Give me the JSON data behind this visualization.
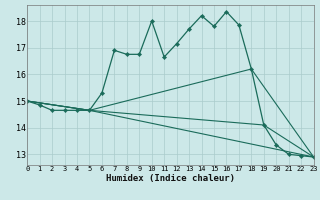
{
  "xlabel": "Humidex (Indice chaleur)",
  "xlim": [
    0,
    23
  ],
  "ylim": [
    12.6,
    18.6
  ],
  "yticks": [
    13,
    14,
    15,
    16,
    17,
    18
  ],
  "xticks": [
    0,
    1,
    2,
    3,
    4,
    5,
    6,
    7,
    8,
    9,
    10,
    11,
    12,
    13,
    14,
    15,
    16,
    17,
    18,
    19,
    20,
    21,
    22,
    23
  ],
  "bg_color": "#cce8e8",
  "grid_color": "#aacccc",
  "line_color": "#1a6b5a",
  "line1_x": [
    0,
    1,
    2,
    3,
    4,
    5,
    6,
    7,
    8,
    9,
    10,
    11,
    12,
    13,
    14,
    15,
    16,
    17,
    18,
    19,
    20,
    21,
    22,
    23
  ],
  "line1_y": [
    15.0,
    14.85,
    14.65,
    14.65,
    14.65,
    14.65,
    15.3,
    16.9,
    16.75,
    16.75,
    18.0,
    16.65,
    17.15,
    17.7,
    18.2,
    17.8,
    18.35,
    17.85,
    16.2,
    14.1,
    13.35,
    13.0,
    12.95,
    12.9
  ],
  "line2_x": [
    0,
    5,
    18,
    23
  ],
  "line2_y": [
    15.0,
    14.65,
    16.2,
    12.9
  ],
  "line3_x": [
    0,
    5,
    19,
    23
  ],
  "line3_y": [
    15.0,
    14.65,
    14.1,
    12.9
  ],
  "line4_x": [
    0,
    5,
    23
  ],
  "line4_y": [
    15.0,
    14.65,
    12.9
  ]
}
